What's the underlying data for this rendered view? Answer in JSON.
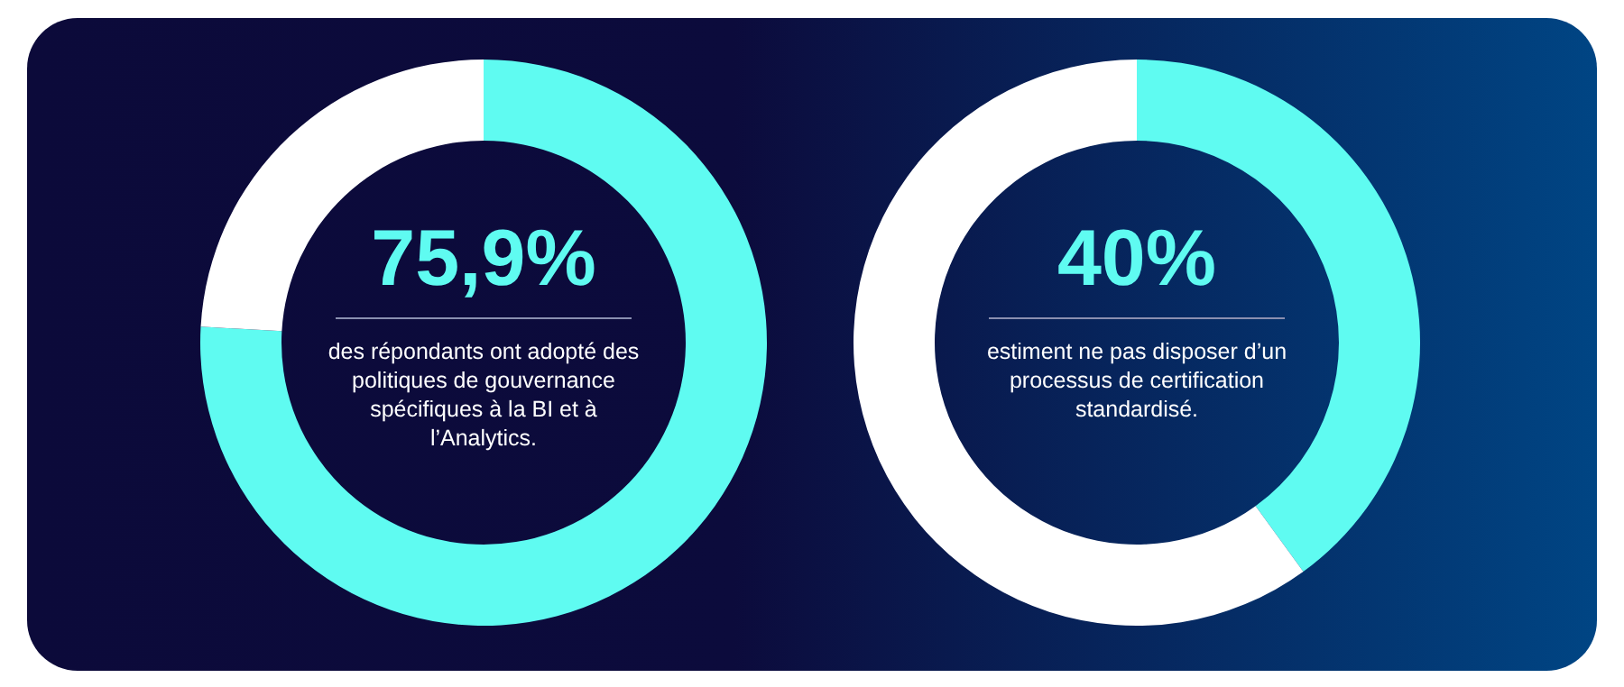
{
  "chart_data": [
    {
      "type": "donut",
      "categories": [
        null,
        null
      ],
      "values": [
        75.9,
        24.1
      ],
      "colors": [
        "#5ffbf1",
        "#ffffff"
      ],
      "value_labels": [
        "75,9%",
        null
      ],
      "annotations": [
        "des répondants ont adopté des politiques de gouvernance spécifiques à la BI et à l’Analytics."
      ]
    },
    {
      "type": "donut",
      "categories": [
        null,
        null
      ],
      "values": [
        40,
        60
      ],
      "colors": [
        "#5ffbf1",
        "#ffffff"
      ],
      "value_labels": [
        "40%",
        null
      ],
      "annotations": [
        "estiment ne pas disposer d’un processus de certification standardisé."
      ]
    }
  ]
}
